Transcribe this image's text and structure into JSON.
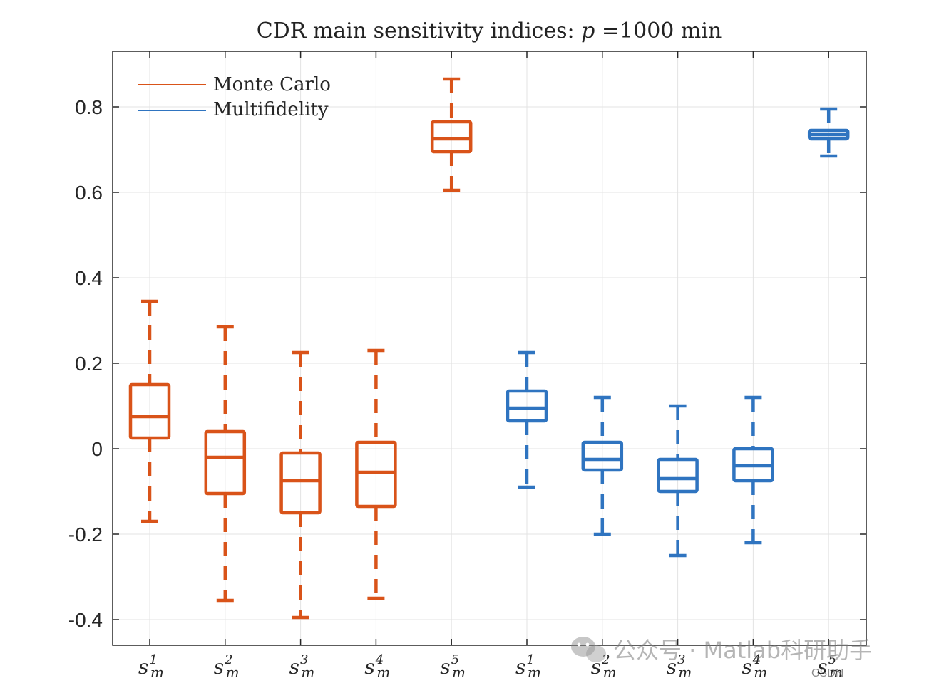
{
  "chart_data": {
    "type": "box",
    "title": {
      "prefix": "CDR main sensitivity indices: ",
      "variable": "p",
      "suffix": " =1000 min"
    },
    "ylim": [
      -0.46,
      0.93
    ],
    "yticks": [
      -0.4,
      -0.2,
      0,
      0.2,
      0.4,
      0.6,
      0.8
    ],
    "ytick_labels": [
      "-0.4",
      "-0.2",
      "0",
      "0.2",
      "0.4",
      "0.6",
      "0.8"
    ],
    "grid": true,
    "legend": {
      "position": "top-left",
      "entries": [
        {
          "label": "Monte Carlo",
          "color": "#D95319"
        },
        {
          "label": "Multifidelity",
          "color": "#2F74C0"
        }
      ]
    },
    "categories": [
      {
        "base": "s",
        "sub": "m",
        "sup": "1"
      },
      {
        "base": "s",
        "sub": "m",
        "sup": "2"
      },
      {
        "base": "s",
        "sub": "m",
        "sup": "3"
      },
      {
        "base": "s",
        "sub": "m",
        "sup": "4"
      },
      {
        "base": "s",
        "sub": "m",
        "sup": "5"
      },
      {
        "base": "s",
        "sub": "m",
        "sup": "1"
      },
      {
        "base": "s",
        "sub": "m",
        "sup": "2"
      },
      {
        "base": "s",
        "sub": "m",
        "sup": "3"
      },
      {
        "base": "s",
        "sub": "m",
        "sup": "4"
      },
      {
        "base": "s",
        "sub": "m",
        "sup": "5"
      }
    ],
    "series": [
      {
        "name": "Monte Carlo",
        "color": "#D95319",
        "boxes": [
          {
            "whisker_low": -0.17,
            "q1": 0.025,
            "median": 0.075,
            "q3": 0.15,
            "whisker_high": 0.345
          },
          {
            "whisker_low": -0.355,
            "q1": -0.105,
            "median": -0.02,
            "q3": 0.04,
            "whisker_high": 0.285
          },
          {
            "whisker_low": -0.395,
            "q1": -0.15,
            "median": -0.075,
            "q3": -0.01,
            "whisker_high": 0.225
          },
          {
            "whisker_low": -0.35,
            "q1": -0.135,
            "median": -0.055,
            "q3": 0.015,
            "whisker_high": 0.23
          },
          {
            "whisker_low": 0.605,
            "q1": 0.695,
            "median": 0.725,
            "q3": 0.765,
            "whisker_high": 0.865
          }
        ]
      },
      {
        "name": "Multifidelity",
        "color": "#2F74C0",
        "boxes": [
          {
            "whisker_low": -0.09,
            "q1": 0.065,
            "median": 0.095,
            "q3": 0.135,
            "whisker_high": 0.225
          },
          {
            "whisker_low": -0.2,
            "q1": -0.05,
            "median": -0.025,
            "q3": 0.015,
            "whisker_high": 0.12
          },
          {
            "whisker_low": -0.25,
            "q1": -0.1,
            "median": -0.07,
            "q3": -0.025,
            "whisker_high": 0.1
          },
          {
            "whisker_low": -0.22,
            "q1": -0.075,
            "median": -0.04,
            "q3": -0.0,
            "whisker_high": 0.12
          },
          {
            "whisker_low": 0.685,
            "q1": 0.725,
            "median": 0.735,
            "q3": 0.745,
            "whisker_high": 0.795
          }
        ]
      }
    ]
  },
  "watermark": {
    "text": "公众号 · Matlab科研助手",
    "icon": "wechat-icon",
    "source": "CSDN"
  }
}
